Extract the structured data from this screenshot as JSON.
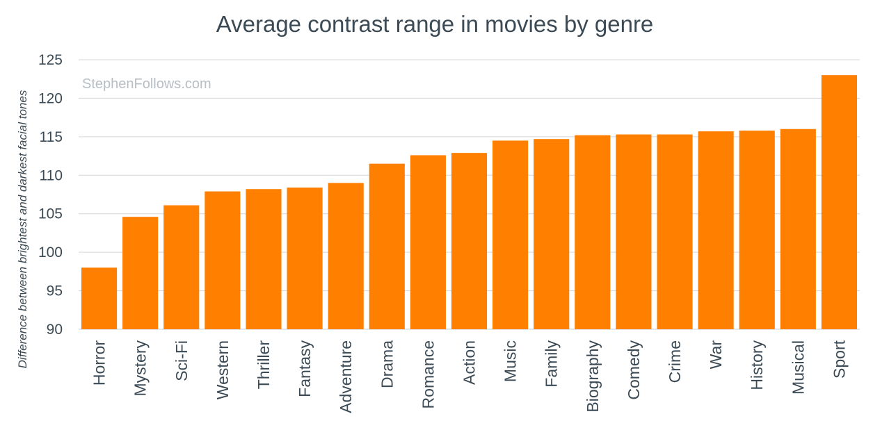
{
  "chart_data": {
    "type": "bar",
    "title": "Average contrast range in movies by genre",
    "ylabel": "Difference between brightest and darkest facial tones",
    "xlabel": "",
    "watermark": "StephenFollows.com",
    "ylim": [
      90,
      125
    ],
    "yticks": [
      90,
      95,
      100,
      105,
      110,
      115,
      120,
      125
    ],
    "grid": true,
    "bar_color": "#ff7f00",
    "categories": [
      "Horror",
      "Mystery",
      "Sci-Fi",
      "Western",
      "Thriller",
      "Fantasy",
      "Adventure",
      "Drama",
      "Romance",
      "Action",
      "Music",
      "Family",
      "Biography",
      "Comedy",
      "Crime",
      "War",
      "History",
      "Musical",
      "Sport"
    ],
    "values": [
      98.0,
      104.6,
      106.1,
      107.9,
      108.2,
      108.4,
      109.0,
      111.5,
      112.6,
      112.9,
      114.5,
      114.7,
      115.2,
      115.3,
      115.3,
      115.7,
      115.8,
      116.0,
      123.0
    ]
  }
}
